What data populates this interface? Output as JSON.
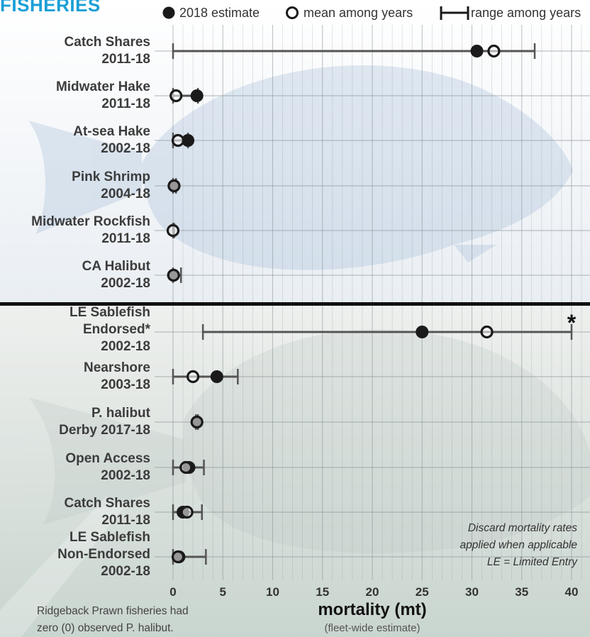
{
  "section_title": "FISHERIES",
  "legend": {
    "estimate_label": "2018 estimate",
    "mean_label": "mean among years",
    "range_label": "range among years"
  },
  "notes": {
    "line1": "Discard mortality rates",
    "line2": "applied when applicable",
    "line3": "LE = Limited Entry"
  },
  "footnote": {
    "line1": "Ridgeback Prawn fisheries had",
    "line2": "zero (0) observed P. halibut."
  },
  "colors": {
    "marker": "#1a1a1a",
    "range_line": "#555555",
    "grid": "#8a9499",
    "divider": "#111111",
    "title": "#1a9fd6"
  },
  "chart_data": {
    "type": "dot-range",
    "xlabel": "mortality (mt)",
    "xsubtitle": "(fleet-wide estimate)",
    "xlim": [
      -2,
      42
    ],
    "xticks": [
      0,
      5,
      10,
      15,
      20,
      25,
      30,
      35,
      40
    ],
    "groups": [
      {
        "rows": [
          {
            "label": [
              "Catch Shares",
              "2011-18"
            ],
            "estimate": 30.5,
            "mean": 32.2,
            "range": [
              0,
              36.3
            ]
          },
          {
            "label": [
              "Midwater Hake",
              "2011-18"
            ],
            "estimate": 2.4,
            "mean": 0.3,
            "range": [
              0,
              2.5
            ]
          },
          {
            "label": [
              "At-sea Hake",
              "2002-18"
            ],
            "estimate": 1.5,
            "mean": 0.5,
            "range": [
              0,
              1.5
            ]
          },
          {
            "label": [
              "Pink Shrimp",
              "2004-18"
            ],
            "estimate": 0.1,
            "mean": 0.1,
            "range": [
              0,
              0.3
            ]
          },
          {
            "label": [
              "Midwater Rockfish",
              "2011-18"
            ],
            "estimate": null,
            "mean": 0.0,
            "range": [
              0,
              0.1
            ]
          },
          {
            "label": [
              "CA Halibut",
              "2002-18"
            ],
            "estimate": 0.05,
            "mean": 0.05,
            "range": [
              0,
              0.8
            ]
          }
        ]
      },
      {
        "rows": [
          {
            "label": [
              "LE Sablefish",
              "Endorsed*",
              "2002-18"
            ],
            "estimate": 25.0,
            "mean": 31.5,
            "range": [
              3.0,
              40.0
            ],
            "range_truncated": true,
            "truncation_marker": "*"
          },
          {
            "label": [
              "Nearshore",
              "2003-18"
            ],
            "estimate": 4.4,
            "mean": 2.0,
            "range": [
              0,
              6.5
            ]
          },
          {
            "label": [
              "P. halibut",
              "Derby 2017-18"
            ],
            "estimate": 2.4,
            "mean": 2.4,
            "range": [
              2.3,
              2.5
            ]
          },
          {
            "label": [
              "Open Access",
              "2002-18"
            ],
            "estimate": 1.6,
            "mean": 1.3,
            "range": [
              0,
              3.1
            ]
          },
          {
            "label": [
              "Catch Shares",
              "2011-18"
            ],
            "estimate": 1.0,
            "mean": 1.4,
            "range": [
              0,
              2.9
            ]
          },
          {
            "label": [
              "LE Sablefish",
              "Non-Endorsed",
              "2002-18"
            ],
            "estimate": 0.6,
            "mean": 0.5,
            "range": [
              0,
              3.3
            ]
          }
        ]
      }
    ]
  }
}
